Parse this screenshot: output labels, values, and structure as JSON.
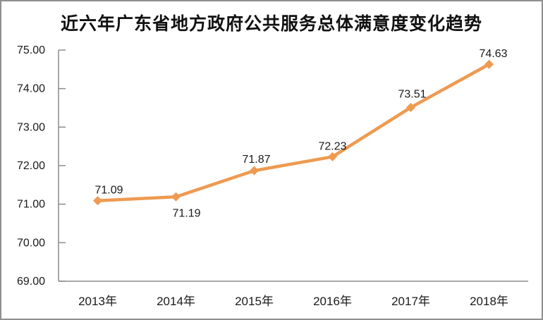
{
  "title": "近六年广东省地方政府公共服务总体满意度变化趋势",
  "chart_data": {
    "type": "line",
    "title": "近六年广东省地方政府公共服务总体满意度变化趋势",
    "categories": [
      "2013年",
      "2014年",
      "2015年",
      "2016年",
      "2017年",
      "2018年"
    ],
    "values": [
      71.09,
      71.19,
      71.87,
      72.23,
      73.51,
      74.63
    ],
    "data_labels": [
      "71.09",
      "71.19",
      "71.87",
      "72.23",
      "73.51",
      "74.63"
    ],
    "xlabel": "",
    "ylabel": "",
    "ylim": [
      69,
      75
    ],
    "ytick_step": 1,
    "ytick_labels": [
      "69.00",
      "70.00",
      "71.00",
      "72.00",
      "73.00",
      "74.00",
      "75.00"
    ],
    "grid": false,
    "legend": "none",
    "line_color": "#EE9A51",
    "marker": "diamond",
    "axis_color": "#8c8c8c",
    "text_color": "#1a1a1a",
    "background": "#ffffff",
    "border_color": "#8f8f8f"
  }
}
